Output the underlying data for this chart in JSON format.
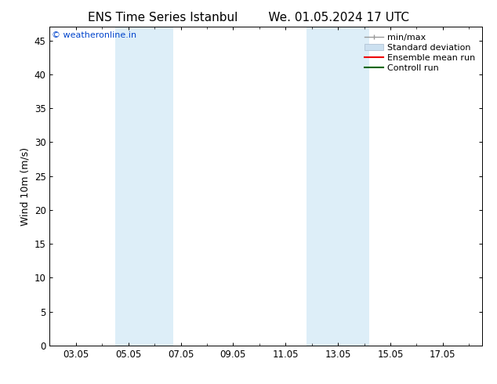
{
  "title_left": "ENS Time Series Istanbul",
  "title_right": "We. 01.05.2024 17 UTC",
  "ylabel": "Wind 10m (m/s)",
  "ylim": [
    0,
    47
  ],
  "yticks": [
    0,
    5,
    10,
    15,
    20,
    25,
    30,
    35,
    40,
    45
  ],
  "xlim": [
    1.0,
    17.5
  ],
  "xtick_labels": [
    "03.05",
    "05.05",
    "07.05",
    "09.05",
    "11.05",
    "13.05",
    "15.05",
    "17.05"
  ],
  "xtick_positions": [
    2,
    4,
    6,
    8,
    10,
    12,
    14,
    16
  ],
  "shaded_bands": [
    [
      3.5,
      4.3
    ],
    [
      4.3,
      5.7
    ],
    [
      10.8,
      11.6
    ],
    [
      11.6,
      13.2
    ]
  ],
  "shaded_color": "#ddeef8",
  "background_color": "#ffffff",
  "watermark_text": "© weatheronline.in",
  "watermark_color": "#0044cc",
  "legend_items": [
    {
      "label": "min/max",
      "color": "#999999"
    },
    {
      "label": "Standard deviation",
      "color": "#cce0f0"
    },
    {
      "label": "Ensemble mean run",
      "color": "#ee0000"
    },
    {
      "label": "Controll run",
      "color": "#006600"
    }
  ],
  "title_fontsize": 11,
  "ylabel_fontsize": 9,
  "tick_fontsize": 8.5,
  "legend_fontsize": 8,
  "watermark_fontsize": 8
}
